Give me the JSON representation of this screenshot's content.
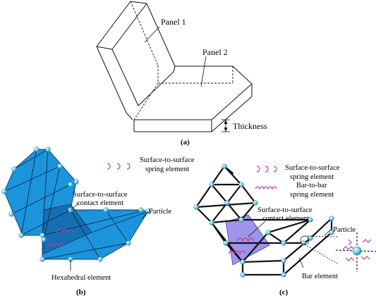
{
  "panel_a": {
    "panel1_label": "Panel 1",
    "panel2_label": "Panel 2",
    "thickness_label": "Thickness",
    "caption": "(a)"
  },
  "panel_b": {
    "spring_legend": "Surface-to-surface",
    "spring_legend_2": "spring element",
    "contact_label": "Surface-to-surface",
    "contact_label_2": "contact element",
    "particle_label": "Particle",
    "hexa_label": "Hexahedral element",
    "caption": "(b)"
  },
  "panel_c": {
    "spring_legend": "Surface-to-surface",
    "spring_legend_2": "spring element",
    "bar_spring_legend": "Bar-to-bar",
    "bar_spring_legend_2": "spring element",
    "contact_label": "Surface-to-surface",
    "contact_label_2": "contact element",
    "particle_label": "Particle",
    "bar_label": "Bar element",
    "caption": "(c)"
  },
  "colors": {
    "panel_fill": "#1c94dc",
    "particle": "#7fd3e8",
    "contact": "#6a5be0",
    "spring": "#c8349a"
  }
}
